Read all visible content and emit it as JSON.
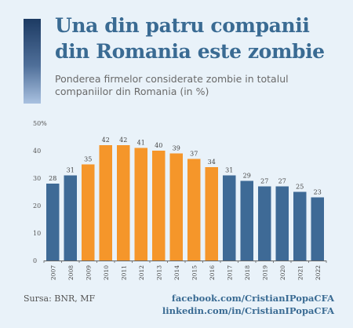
{
  "title": "Una din patru companii din Romania este zombie",
  "subtitle": "Ponderea firmelor considerate zombie in totalul companiilor din Romania (in %)",
  "colors": {
    "blue": "#3e6a96",
    "orange": "#f5962a",
    "title": "#3a6b93"
  },
  "chart_data": {
    "type": "bar",
    "categories": [
      "2007",
      "2008",
      "2009",
      "2010",
      "2011",
      "2012",
      "2013",
      "2014",
      "2015",
      "2016",
      "2017",
      "2018",
      "2019",
      "2020",
      "2021",
      "2022"
    ],
    "values": [
      28,
      31,
      35,
      42,
      42,
      41,
      40,
      39,
      37,
      34,
      31,
      29,
      27,
      27,
      25,
      23
    ],
    "highlight": [
      "2009",
      "2010",
      "2011",
      "2012",
      "2013",
      "2014",
      "2015",
      "2016"
    ],
    "ylim": [
      0,
      50
    ],
    "yticks": [
      0,
      10,
      20,
      30,
      40,
      50
    ],
    "ytick_labels": [
      "0",
      "10",
      "20",
      "30",
      "40",
      "50%"
    ],
    "title": "",
    "xlabel": "",
    "ylabel": "",
    "grid": false
  },
  "footer": {
    "source": "Sursa: BNR, MF",
    "facebook": "facebook.com/CristianIPopaCFA",
    "linkedin": "linkedin.com/in/CristianIPopaCFA"
  }
}
